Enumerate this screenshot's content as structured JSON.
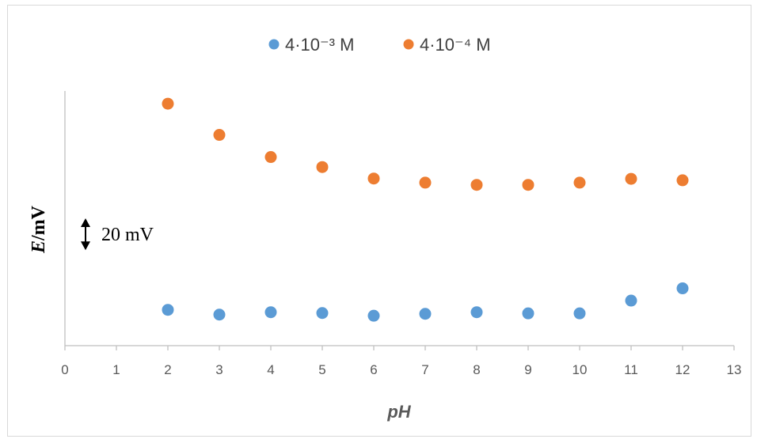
{
  "chart_data": {
    "type": "scatter",
    "title": "",
    "xlabel": "pH",
    "ylabel_main": "E",
    "ylabel_unit": "/mV",
    "xlim": [
      0,
      13
    ],
    "xticks": [
      0,
      1,
      2,
      3,
      4,
      5,
      6,
      7,
      8,
      9,
      10,
      11,
      12,
      13
    ],
    "ylim": [
      0,
      160
    ],
    "y_axis_tick_labels_shown": false,
    "grid": false,
    "legend_position": "top-center",
    "scale_bar": {
      "label": "20 mV",
      "span_mv": 20
    },
    "series": [
      {
        "name": "4·10⁻³ M",
        "color": "#5b9bd5",
        "x": [
          2,
          3,
          4,
          5,
          6,
          7,
          8,
          9,
          10,
          11,
          12
        ],
        "y": [
          22.5,
          19.5,
          21.0,
          20.5,
          18.8,
          20.0,
          21.0,
          20.3,
          20.3,
          28.3,
          36.0
        ]
      },
      {
        "name": "4·10⁻⁴ M",
        "color": "#ed7d31",
        "x": [
          2,
          3,
          4,
          5,
          6,
          7,
          8,
          9,
          10,
          11,
          12
        ],
        "y": [
          152.0,
          132.4,
          118.5,
          112.2,
          105.0,
          102.4,
          101.0,
          101.0,
          102.4,
          104.8,
          103.9
        ]
      }
    ]
  }
}
